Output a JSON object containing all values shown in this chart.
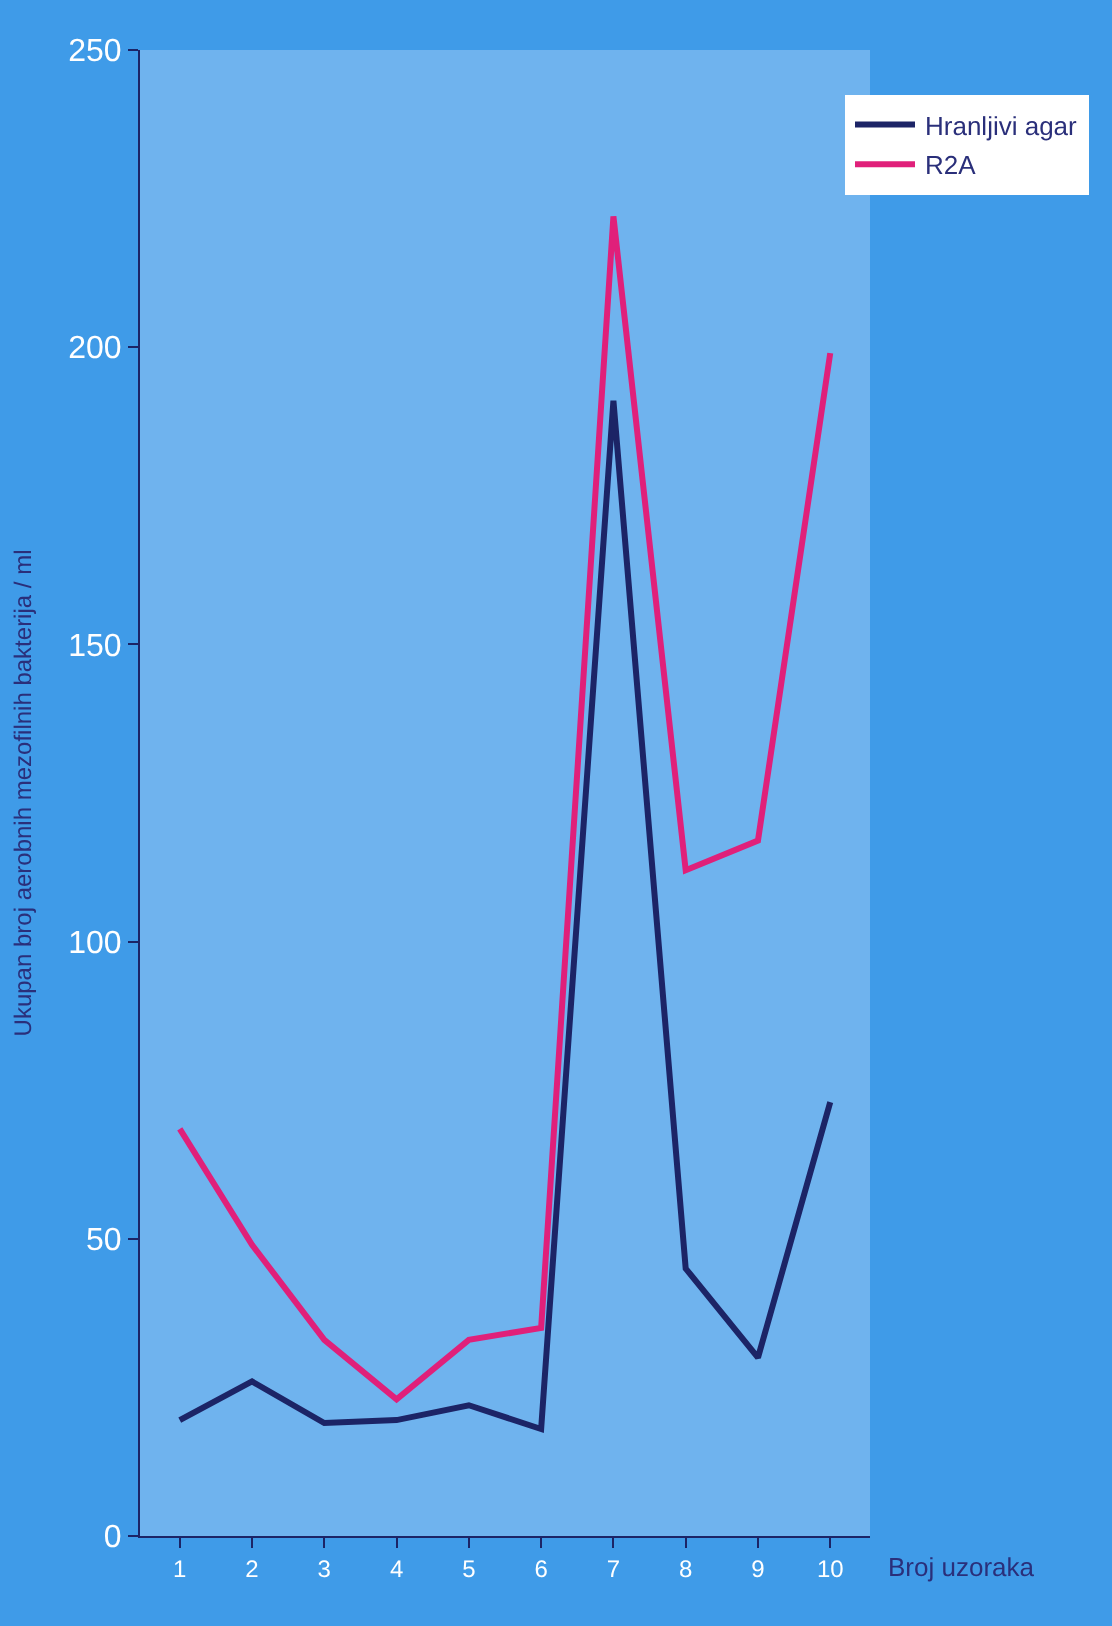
{
  "chart_data": {
    "type": "line",
    "xlabel": "Broj uzoraka",
    "ylabel": "Ukupan broj aerobnih mezofilnih bakterija / ml",
    "categories": [
      "1",
      "2",
      "3",
      "4",
      "5",
      "6",
      "7",
      "8",
      "9",
      "10"
    ],
    "series": [
      {
        "name": "Hranljivi agar",
        "color": "#1c2466",
        "values": [
          19.5,
          26,
          19,
          19.5,
          22,
          18,
          191,
          45,
          30,
          73
        ]
      },
      {
        "name": "R2A",
        "color": "#e0207a",
        "values": [
          68.5,
          49,
          33,
          23,
          33,
          35,
          222,
          112,
          117,
          199
        ]
      }
    ],
    "ylim": [
      0,
      250
    ],
    "yticks": [
      0,
      50,
      100,
      150,
      200,
      250
    ],
    "grid": false,
    "legend": "top right",
    "marker": "none",
    "line_style": "solid"
  }
}
